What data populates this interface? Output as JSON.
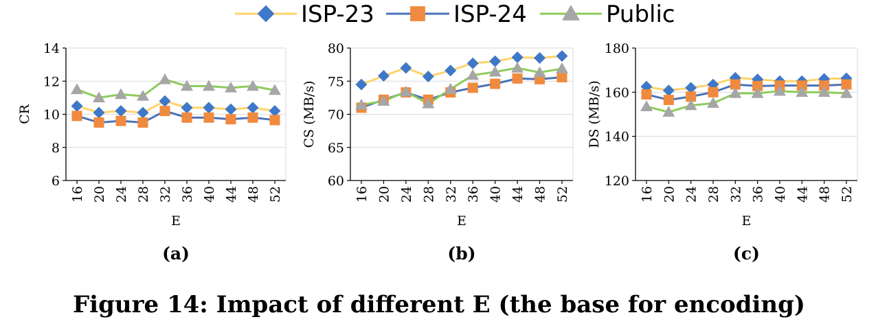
{
  "figure": {
    "caption": "Figure 14: Impact of different E (the base for encoding)"
  },
  "legend": [
    {
      "name": "ISP-23",
      "line_color": "#FFD36B",
      "marker_color": "#3F78C8",
      "marker": "diamond"
    },
    {
      "name": "ISP-24",
      "line_color": "#4B72B8",
      "marker_color": "#F08A3E",
      "marker": "square"
    },
    {
      "name": "Public",
      "line_color": "#8DCB5A",
      "marker_color": "#A6A6A6",
      "marker": "triangle"
    }
  ],
  "chart_data": [
    {
      "type": "line",
      "panel_label": "(a)",
      "xlabel": "E",
      "ylabel": "CR",
      "x": [
        16,
        20,
        24,
        28,
        32,
        36,
        40,
        44,
        48,
        52
      ],
      "ylim": [
        6,
        14
      ],
      "yticks": [
        6,
        8,
        10,
        12,
        14
      ],
      "grid": "horizontal",
      "series": [
        {
          "name": "ISP-23",
          "values": [
            10.5,
            10.1,
            10.2,
            10.1,
            10.8,
            10.4,
            10.4,
            10.3,
            10.4,
            10.2
          ]
        },
        {
          "name": "ISP-24",
          "values": [
            9.9,
            9.5,
            9.6,
            9.5,
            10.2,
            9.8,
            9.8,
            9.7,
            9.8,
            9.65
          ]
        },
        {
          "name": "Public",
          "values": [
            11.5,
            11.0,
            11.2,
            11.1,
            12.1,
            11.7,
            11.7,
            11.6,
            11.7,
            11.45
          ]
        }
      ]
    },
    {
      "type": "line",
      "panel_label": "(b)",
      "xlabel": "E",
      "ylabel": "CS (MB/s)",
      "x": [
        16,
        20,
        24,
        28,
        32,
        36,
        40,
        44,
        48,
        52
      ],
      "ylim": [
        60,
        80
      ],
      "yticks": [
        60,
        65,
        70,
        75,
        80
      ],
      "grid": "horizontal",
      "series": [
        {
          "name": "ISP-23",
          "values": [
            74.5,
            75.8,
            77.0,
            75.7,
            76.6,
            77.7,
            78.0,
            78.6,
            78.5,
            78.8
          ]
        },
        {
          "name": "ISP-24",
          "values": [
            71.0,
            72.2,
            73.3,
            72.2,
            73.3,
            74.0,
            74.6,
            75.4,
            75.3,
            75.6
          ]
        },
        {
          "name": "Public",
          "values": [
            71.4,
            72.0,
            73.4,
            71.6,
            73.8,
            75.9,
            76.4,
            77.0,
            76.3,
            76.9
          ]
        }
      ]
    },
    {
      "type": "line",
      "panel_label": "(c)",
      "xlabel": "E",
      "ylabel": "DS (MB/s)",
      "x": [
        16,
        20,
        24,
        28,
        32,
        36,
        40,
        44,
        48,
        52
      ],
      "ylim": [
        120,
        180
      ],
      "yticks": [
        120,
        140,
        160,
        180
      ],
      "grid": "horizontal",
      "series": [
        {
          "name": "ISP-23",
          "values": [
            162.5,
            160.8,
            162.0,
            163.5,
            166.5,
            165.8,
            165.0,
            165.0,
            166.0,
            166.3
          ]
        },
        {
          "name": "ISP-24",
          "values": [
            159.0,
            156.5,
            158.0,
            160.0,
            163.5,
            162.8,
            163.0,
            163.0,
            163.0,
            163.5
          ]
        },
        {
          "name": "Public",
          "values": [
            153.5,
            151.0,
            154.0,
            155.0,
            159.5,
            159.5,
            160.5,
            160.0,
            160.0,
            159.5
          ]
        }
      ]
    }
  ]
}
